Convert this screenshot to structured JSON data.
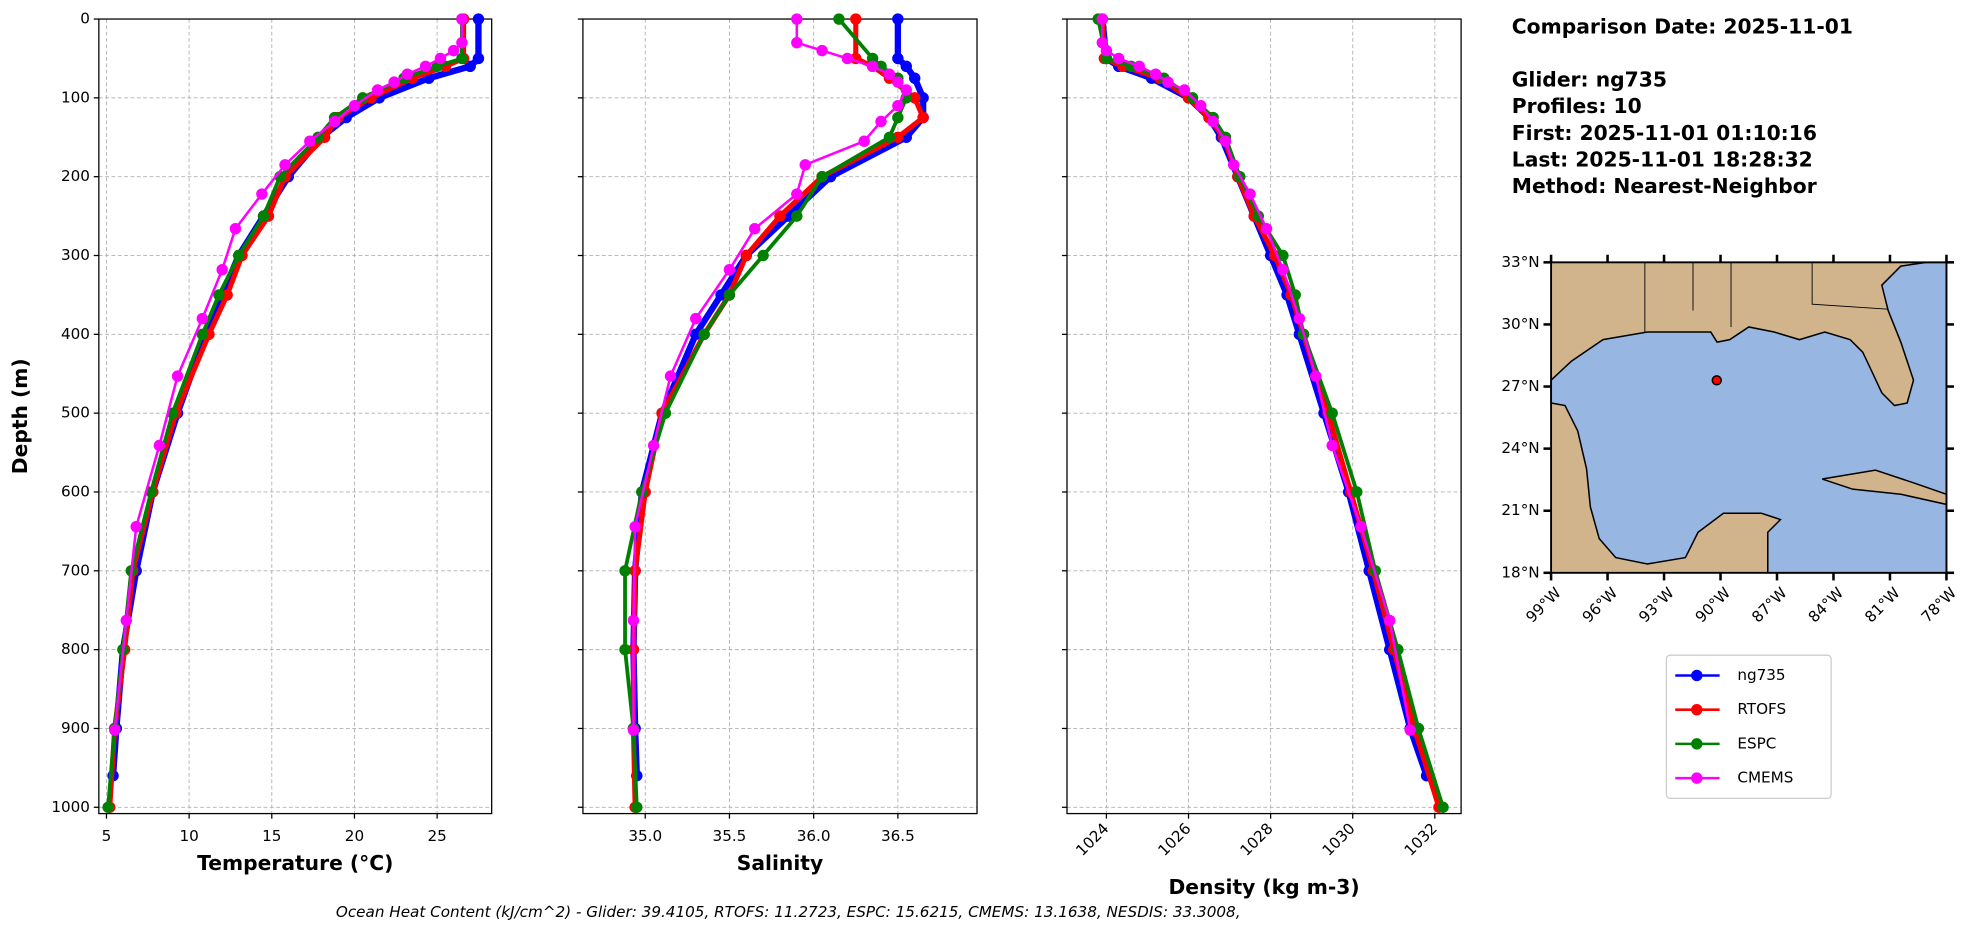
{
  "info": {
    "date_line": "Comparison Date: 2025-11-01",
    "lines": [
      "Glider: ng735",
      "Profiles: 10",
      "First: 2025-11-01 01:10:16",
      "Last: 2025-11-01 18:28:32",
      "Method: Nearest-Neighbor"
    ]
  },
  "footer": "Ocean Heat Content (kJ/cm^2) - Glider: 39.4105,  RTOFS: 11.2723,  ESPC: 15.6215,  CMEMS: 13.1638,  NESDIS: 33.3008,",
  "legend": [
    {
      "name": "ng735",
      "color": "#0000ff"
    },
    {
      "name": "RTOFS",
      "color": "#ff0000"
    },
    {
      "name": "ESPC",
      "color": "#008000"
    },
    {
      "name": "CMEMS",
      "color": "#ff00ff"
    }
  ],
  "chart_data": [
    {
      "type": "line",
      "xlabel": "Temperature (°C)",
      "ylabel": "Depth (m)",
      "ytick_labels": true,
      "grid": true,
      "xlim": [
        4.54,
        28.3
      ],
      "xticks": [
        5,
        10,
        15,
        20,
        25
      ],
      "ylim": [
        1008,
        0
      ],
      "yticks": [
        0,
        100,
        200,
        300,
        400,
        500,
        600,
        700,
        800,
        900,
        1000
      ],
      "series": [
        {
          "x": [
            27.5,
            27.5,
            27.0,
            24.5,
            21.5,
            19.5,
            18,
            16,
            14.5,
            13,
            12,
            11,
            9.3,
            7.8,
            6.8,
            6.0,
            5.6,
            5.4
          ],
          "y": [
            0,
            50,
            60,
            75,
            100,
            125,
            150,
            200,
            250,
            300,
            350,
            400,
            500,
            600,
            700,
            800,
            900,
            960
          ]
        },
        {
          "x": [
            26.6,
            26.6,
            25.5,
            23.5,
            21,
            19,
            18.2,
            15.8,
            14.8,
            13.2,
            12.3,
            11.2,
            9.2,
            7.8,
            6.6,
            6.1,
            5.5,
            5.2
          ],
          "y": [
            0,
            50,
            60,
            75,
            100,
            125,
            150,
            200,
            250,
            300,
            350,
            400,
            500,
            600,
            700,
            800,
            900,
            1000
          ]
        },
        {
          "x": [
            26.5,
            26.5,
            25,
            23,
            20.5,
            18.8,
            17.8,
            15.5,
            14.5,
            13,
            11.8,
            10.8,
            9,
            7.7,
            6.5,
            6,
            5.5,
            5.1
          ],
          "y": [
            0,
            50,
            60,
            75,
            100,
            125,
            150,
            200,
            250,
            300,
            350,
            400,
            500,
            600,
            700,
            800,
            900,
            1000
          ]
        },
        {
          "x": [
            26.5,
            26.5,
            26.0,
            25.2,
            24.3,
            23.2,
            22.4,
            21.4,
            20,
            18.8,
            17.3,
            15.8,
            14.4,
            12.8,
            12.0,
            10.8,
            9.3,
            8.2,
            6.8,
            6.2,
            5.5
          ],
          "y": [
            0,
            30,
            40,
            50,
            60,
            70,
            80,
            90,
            110,
            130,
            155,
            185,
            222,
            266,
            318,
            380,
            453,
            541,
            644,
            763,
            902
          ]
        }
      ]
    },
    {
      "type": "line",
      "xlabel": "Salinity",
      "ytick_labels": false,
      "grid": true,
      "xlim": [
        34.63,
        36.97
      ],
      "xticks": [
        {
          "value": 35,
          "label": "35.0"
        },
        35.5,
        {
          "value": 36,
          "label": "36.0"
        },
        36.5
      ],
      "ylim": [
        1008,
        0
      ],
      "yticks": [
        0,
        100,
        200,
        300,
        400,
        500,
        600,
        700,
        800,
        900,
        1000
      ],
      "series": [
        {
          "x": [
            36.5,
            36.5,
            36.55,
            36.6,
            36.65,
            36.65,
            36.55,
            36.1,
            35.85,
            35.6,
            35.45,
            35.3,
            35.1,
            34.98,
            34.94,
            34.93,
            34.94,
            34.95
          ],
          "y": [
            0,
            50,
            60,
            75,
            100,
            125,
            150,
            200,
            250,
            300,
            350,
            400,
            500,
            600,
            700,
            800,
            900,
            960
          ]
        },
        {
          "x": [
            36.25,
            36.25,
            36.35,
            36.45,
            36.6,
            36.65,
            36.5,
            36.05,
            35.8,
            35.6,
            35.5,
            35.35,
            35.1,
            35.0,
            34.94,
            34.93,
            34.93,
            34.94
          ],
          "y": [
            0,
            50,
            60,
            75,
            100,
            125,
            150,
            200,
            250,
            300,
            350,
            400,
            500,
            600,
            700,
            800,
            900,
            1000
          ]
        },
        {
          "x": [
            36.15,
            36.35,
            36.4,
            36.5,
            36.55,
            36.5,
            36.45,
            36.05,
            35.9,
            35.7,
            35.5,
            35.35,
            35.12,
            34.98,
            34.88,
            34.88,
            34.93,
            34.95
          ],
          "y": [
            0,
            50,
            60,
            75,
            100,
            125,
            150,
            200,
            250,
            300,
            350,
            400,
            500,
            600,
            700,
            800,
            900,
            1000
          ]
        },
        {
          "x": [
            35.9,
            35.9,
            36.05,
            36.2,
            36.35,
            36.45,
            36.5,
            36.55,
            36.5,
            36.4,
            36.3,
            35.95,
            35.9,
            35.65,
            35.5,
            35.3,
            35.15,
            35.05,
            34.94,
            34.93,
            34.93
          ],
          "y": [
            0,
            30,
            40,
            50,
            60,
            70,
            80,
            90,
            110,
            130,
            155,
            185,
            222,
            266,
            318,
            380,
            453,
            541,
            644,
            763,
            902
          ]
        }
      ]
    },
    {
      "type": "line",
      "xlabel": "Density (kg m-3)",
      "ytick_labels": false,
      "grid": true,
      "xtick_rotation": 45,
      "xlim": [
        1023.04,
        1032.64
      ],
      "xticks": [
        1024,
        1026,
        1028,
        1030,
        1032
      ],
      "ylim": [
        1008,
        0
      ],
      "yticks": [
        0,
        100,
        200,
        300,
        400,
        500,
        600,
        700,
        800,
        900,
        1000
      ],
      "series": [
        {
          "x": [
            1023.9,
            1024.0,
            1024.3,
            1025.1,
            1026.0,
            1026.5,
            1026.8,
            1027.2,
            1027.6,
            1028.0,
            1028.4,
            1028.7,
            1029.3,
            1029.9,
            1030.4,
            1030.9,
            1031.4,
            1031.8
          ],
          "y": [
            0,
            50,
            60,
            75,
            100,
            125,
            150,
            200,
            250,
            300,
            350,
            400,
            500,
            600,
            700,
            800,
            900,
            960
          ]
        },
        {
          "x": [
            1023.9,
            1023.95,
            1024.4,
            1025.3,
            1026.0,
            1026.5,
            1026.85,
            1027.2,
            1027.6,
            1028.1,
            1028.5,
            1028.8,
            1029.4,
            1029.95,
            1030.5,
            1031.0,
            1031.5,
            1032.1
          ],
          "y": [
            0,
            50,
            60,
            75,
            100,
            125,
            150,
            200,
            250,
            300,
            350,
            400,
            500,
            600,
            700,
            800,
            900,
            1000
          ]
        },
        {
          "x": [
            1023.8,
            1024.0,
            1024.6,
            1025.4,
            1026.1,
            1026.6,
            1026.9,
            1027.25,
            1027.7,
            1028.3,
            1028.6,
            1028.8,
            1029.5,
            1030.1,
            1030.55,
            1031.1,
            1031.6,
            1032.2
          ],
          "y": [
            0,
            50,
            60,
            75,
            100,
            125,
            150,
            200,
            250,
            300,
            350,
            400,
            500,
            600,
            700,
            800,
            900,
            1000
          ]
        },
        {
          "x": [
            1023.9,
            1023.9,
            1024.0,
            1024.3,
            1024.8,
            1025.2,
            1025.5,
            1025.9,
            1026.3,
            1026.6,
            1026.9,
            1027.1,
            1027.5,
            1027.9,
            1028.3,
            1028.7,
            1029.1,
            1029.5,
            1030.2,
            1030.9,
            1031.4
          ],
          "y": [
            0,
            30,
            40,
            50,
            60,
            70,
            80,
            90,
            110,
            130,
            155,
            185,
            222,
            266,
            318,
            380,
            453,
            541,
            644,
            763,
            902
          ]
        }
      ]
    },
    {
      "type": "map",
      "land_color": "#d2b48c",
      "ocean_color": "#97b6e1",
      "xlim": [
        -99,
        -78
      ],
      "xticks": [
        {
          "value": -99,
          "label": "99°W"
        },
        {
          "value": -96,
          "label": "96°W"
        },
        {
          "value": -93,
          "label": "93°W"
        },
        {
          "value": -90,
          "label": "90°W"
        },
        {
          "value": -87,
          "label": "87°W"
        },
        {
          "value": -84,
          "label": "84°W"
        },
        {
          "value": -81,
          "label": "81°W"
        },
        {
          "value": -78,
          "label": "78°W"
        }
      ],
      "ylim": [
        18,
        33
      ],
      "yticks": [
        {
          "value": 33,
          "label": "33°N"
        },
        {
          "value": 30,
          "label": "30°N"
        },
        {
          "value": 27,
          "label": "27°N"
        },
        {
          "value": 24,
          "label": "24°N"
        },
        {
          "value": 21,
          "label": "21°N"
        },
        {
          "value": 18,
          "label": "18°N"
        }
      ],
      "points": [
        {
          "x": -90.2,
          "y": 27.3,
          "color": "#ff0000"
        }
      ]
    }
  ]
}
